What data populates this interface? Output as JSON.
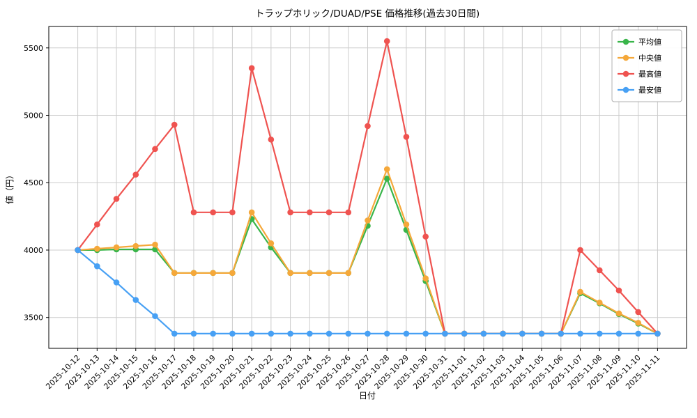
{
  "chart_data": {
    "type": "line",
    "title": "トラップホリック/DUAD/PSE 価格推移(過去30日間)",
    "xlabel": "日付",
    "ylabel": "値（円）",
    "grid": true,
    "legend_position": "upper right",
    "yticks": [
      3500,
      4000,
      4500,
      5000,
      5500
    ],
    "ylim": [
      3271,
      5659
    ],
    "x": [
      "2025-10-12",
      "2025-10-13",
      "2025-10-14",
      "2025-10-15",
      "2025-10-16",
      "2025-10-17",
      "2025-10-18",
      "2025-10-19",
      "2025-10-20",
      "2025-10-21",
      "2025-10-22",
      "2025-10-23",
      "2025-10-24",
      "2025-10-25",
      "2025-10-26",
      "2025-10-27",
      "2025-10-28",
      "2025-10-29",
      "2025-10-30",
      "2025-10-31",
      "2025-11-01",
      "2025-11-02",
      "2025-11-03",
      "2025-11-04",
      "2025-11-05",
      "2025-11-06",
      "2025-11-07",
      "2025-11-08",
      "2025-11-09",
      "2025-11-10",
      "2025-11-11"
    ],
    "series": [
      {
        "id": "average",
        "name": "平均値",
        "color": "#39b54a",
        "values": [
          4000,
          4000,
          4005,
          4005,
          4005,
          3830,
          3830,
          3830,
          3830,
          4230,
          4020,
          3830,
          3830,
          3830,
          3830,
          4180,
          4530,
          4150,
          3770,
          3380,
          3380,
          3380,
          3380,
          3380,
          3380,
          3380,
          3680,
          3605,
          3525,
          3455,
          3380
        ]
      },
      {
        "id": "median",
        "name": "中央値",
        "color": "#f5a83a",
        "values": [
          4000,
          4010,
          4020,
          4030,
          4040,
          3830,
          3830,
          3830,
          3830,
          4280,
          4050,
          3830,
          3830,
          3830,
          3830,
          4220,
          4600,
          4190,
          3790,
          3380,
          3380,
          3380,
          3380,
          3380,
          3380,
          3380,
          3690,
          3610,
          3530,
          3460,
          3380
        ]
      },
      {
        "id": "max",
        "name": "最高値",
        "color": "#ef5350",
        "values": [
          4000,
          4190,
          4380,
          4560,
          4750,
          4930,
          4280,
          4280,
          4280,
          5350,
          4820,
          4280,
          4280,
          4280,
          4280,
          4920,
          5550,
          4840,
          4100,
          3380,
          3380,
          3380,
          3380,
          3380,
          3380,
          3380,
          4000,
          3850,
          3700,
          3540,
          3380
        ]
      },
      {
        "id": "min",
        "name": "最安値",
        "color": "#47a0f4",
        "values": [
          4000,
          3880,
          3760,
          3630,
          3510,
          3380,
          3380,
          3380,
          3380,
          3380,
          3380,
          3380,
          3380,
          3380,
          3380,
          3380,
          3380,
          3380,
          3380,
          3380,
          3380,
          3380,
          3380,
          3380,
          3380,
          3380,
          3380,
          3380,
          3380,
          3380,
          3380
        ]
      }
    ]
  }
}
